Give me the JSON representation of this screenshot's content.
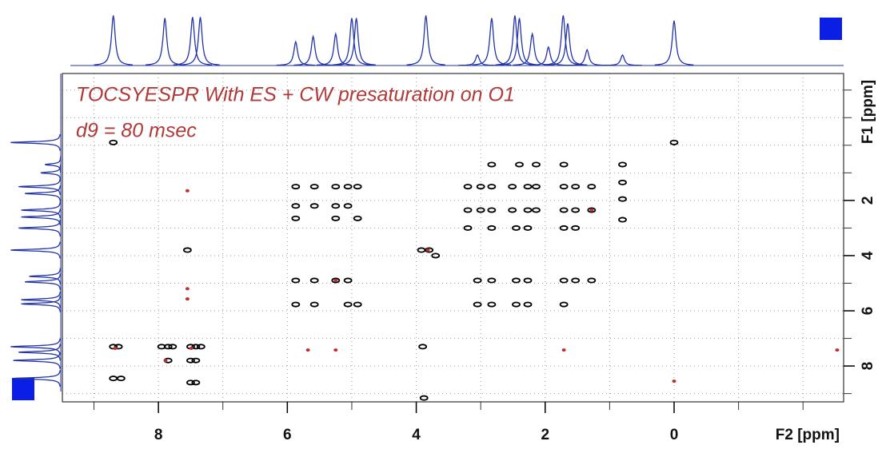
{
  "chart_data": {
    "type": "nmr2d",
    "title": "TOCSYESPR  With ES + CW presaturation on O1",
    "subtitle": "d9 = 80  msec",
    "x_label": "F2 [ppm]",
    "y_label": "F1 [ppm]",
    "xlim": [
      9.49,
      -2.63
    ],
    "ylim": [
      -2.6,
      9.3
    ],
    "xticks": [
      8,
      6,
      4,
      2,
      0
    ],
    "yticks": [
      2,
      4,
      6,
      8
    ],
    "xgrid": [
      9,
      8,
      7,
      6,
      5,
      4,
      3,
      2,
      1,
      0,
      -1,
      -2
    ],
    "ygrid": [
      -2,
      -1,
      0,
      1,
      2,
      3,
      4,
      5,
      6,
      7,
      8,
      9
    ],
    "grid": true,
    "projection_color": "#2233aa",
    "f2_projection": {
      "x": [
        8.7,
        7.9,
        7.47,
        7.35,
        5.87,
        5.6,
        5.25,
        5.0,
        4.93,
        3.85,
        3.05,
        2.83,
        2.47,
        2.4,
        2.2,
        1.95,
        1.72,
        1.65,
        1.35,
        0.8,
        0.0
      ],
      "heights": [
        95,
        90,
        92,
        92,
        45,
        55,
        60,
        90,
        90,
        95,
        20,
        90,
        95,
        90,
        60,
        35,
        95,
        80,
        30,
        20,
        85
      ]
    },
    "f1_projection": {
      "y": [
        -0.1,
        0.7,
        1.0,
        1.5,
        1.75,
        2.35,
        2.6,
        3.0,
        3.8,
        4.75,
        4.95,
        5.6,
        5.75,
        7.3,
        7.5,
        7.8,
        8.45
      ],
      "heights": [
        95,
        30,
        38,
        80,
        68,
        75,
        75,
        80,
        95,
        60,
        68,
        75,
        75,
        95,
        80,
        90,
        90
      ]
    },
    "series": [
      {
        "name": "positive",
        "color": "#000000",
        "x": [
          8.7,
          0.0,
          0.8,
          0.8,
          0.8,
          0.8,
          5.87,
          5.58,
          5.25,
          5.06,
          4.91,
          5.87,
          5.58,
          5.25,
          5.06,
          5.87,
          5.25,
          4.91,
          3.2,
          3.0,
          2.83,
          2.51,
          2.27,
          2.14,
          1.71,
          1.53,
          1.28,
          3.2,
          3.0,
          2.83,
          2.51,
          2.27,
          2.14,
          1.71,
          1.53,
          1.28,
          3.2,
          2.83,
          2.45,
          2.27,
          1.71,
          1.53,
          2.83,
          2.4,
          2.14,
          1.71,
          3.92,
          3.8,
          3.7,
          5.87,
          5.58,
          5.25,
          5.06,
          3.05,
          2.83,
          2.45,
          2.27,
          1.71,
          1.53,
          1.28,
          5.87,
          5.58,
          5.06,
          4.91,
          3.05,
          2.83,
          2.45,
          2.27,
          1.71,
          7.55,
          8.7,
          8.62,
          7.95,
          7.85,
          7.78,
          7.5,
          7.42,
          7.34,
          3.9,
          7.85,
          7.5,
          7.42,
          7.5,
          7.42,
          8.7,
          8.58,
          3.88
        ],
        "y": [
          -0.1,
          -0.1,
          0.7,
          1.35,
          1.95,
          2.7,
          1.5,
          1.5,
          1.5,
          1.5,
          1.5,
          2.2,
          2.2,
          2.2,
          2.2,
          2.65,
          2.65,
          2.65,
          1.5,
          1.5,
          1.5,
          1.5,
          1.5,
          1.5,
          1.5,
          1.5,
          1.5,
          2.35,
          2.35,
          2.35,
          2.35,
          2.35,
          2.35,
          2.35,
          2.35,
          2.35,
          3.0,
          3.0,
          3.0,
          3.0,
          3.0,
          3.0,
          0.7,
          0.7,
          0.7,
          0.7,
          3.8,
          3.8,
          4.0,
          4.9,
          4.9,
          4.9,
          4.9,
          4.9,
          4.9,
          4.9,
          4.9,
          4.9,
          4.9,
          4.9,
          5.77,
          5.77,
          5.77,
          5.77,
          5.77,
          5.77,
          5.77,
          5.77,
          5.77,
          3.8,
          7.3,
          7.3,
          7.3,
          7.3,
          7.3,
          7.3,
          7.3,
          7.3,
          7.3,
          7.8,
          7.8,
          7.8,
          8.6,
          8.6,
          8.45,
          8.45,
          9.16
        ]
      },
      {
        "name": "negative",
        "color": "#c0302a",
        "x": [
          7.55,
          7.55,
          7.55,
          5.68,
          5.25,
          1.71,
          0.0,
          -2.53,
          1.28,
          3.82,
          5.25,
          7.89,
          7.49,
          8.67
        ],
        "y": [
          1.65,
          5.2,
          5.57,
          7.42,
          7.42,
          7.42,
          8.55,
          7.42,
          2.35,
          3.8,
          4.9,
          7.8,
          7.36,
          7.36
        ]
      }
    ]
  }
}
